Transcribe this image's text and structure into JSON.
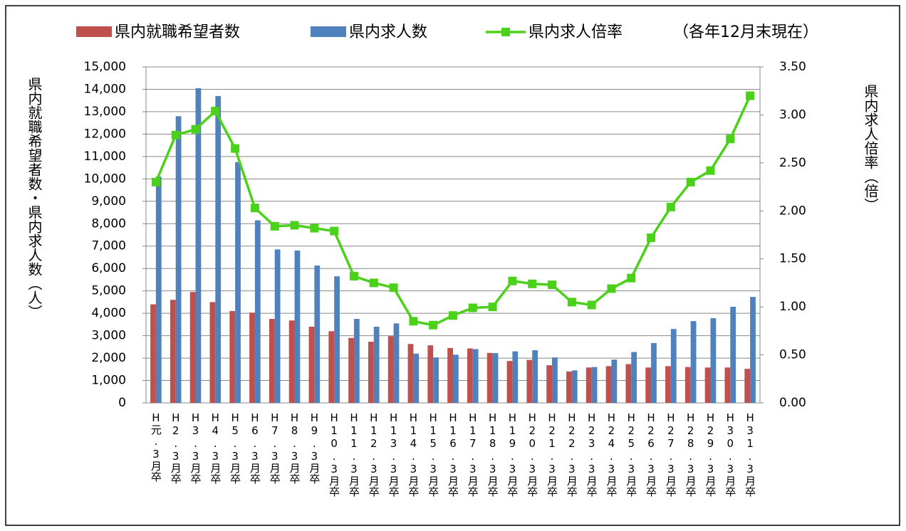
{
  "chart_data": {
    "type": "bar_line",
    "note": "（各年12月末現在）",
    "y_label": "県内就職希望者数・県内求人数（人）",
    "y2_label": "県内求人倍率（倍）",
    "categories": [
      "H元.3月卒",
      "H2.3月卒",
      "H3.3月卒",
      "H4.3月卒",
      "H5.3月卒",
      "H6.3月卒",
      "H7.3月卒",
      "H8.3月卒",
      "H9.3月卒",
      "H10.3月卒",
      "H11.3月卒",
      "H12.3月卒",
      "H13.3月卒",
      "H14.3月卒",
      "H15.3月卒",
      "H16.3月卒",
      "H17.3月卒",
      "H18.3月卒",
      "H19.3月卒",
      "H20.3月卒",
      "H21.3月卒",
      "H22.3月卒",
      "H23.3月卒",
      "H24.3月卒",
      "H25.3月卒",
      "H26.3月卒",
      "H27.3月卒",
      "H28.3月卒",
      "H29.3月卒",
      "H30.3月卒",
      "H31.3月卒"
    ],
    "series": [
      {
        "name": "県内就職希望者数",
        "type": "bar",
        "color": "#c0504d",
        "values": [
          4400,
          4600,
          4950,
          4500,
          4100,
          4030,
          3750,
          3680,
          3400,
          3200,
          2900,
          2730,
          2980,
          2630,
          2570,
          2450,
          2430,
          2230,
          1870,
          1920,
          1680,
          1400,
          1580,
          1640,
          1730,
          1580,
          1640,
          1600,
          1580,
          1580,
          1520
        ]
      },
      {
        "name": "県内求人数",
        "type": "bar",
        "color": "#4f81bd",
        "values": [
          10100,
          12800,
          14050,
          13700,
          10750,
          8150,
          6850,
          6800,
          6130,
          5650,
          3750,
          3400,
          3550,
          2200,
          2030,
          2150,
          2400,
          2220,
          2300,
          2350,
          2030,
          1450,
          1600,
          1930,
          2270,
          2670,
          3300,
          3650,
          3780,
          4290,
          4730
        ]
      },
      {
        "name": "県内求人倍率",
        "type": "line",
        "axis": "y2",
        "color": "#4cd11a",
        "values": [
          2.3,
          2.79,
          2.85,
          3.04,
          2.65,
          2.03,
          1.84,
          1.85,
          1.82,
          1.79,
          1.32,
          1.25,
          1.2,
          0.85,
          0.81,
          0.91,
          0.99,
          1.0,
          1.27,
          1.24,
          1.23,
          1.05,
          1.02,
          1.19,
          1.3,
          1.72,
          2.04,
          2.3,
          2.42,
          2.75,
          3.2
        ]
      }
    ],
    "ylim": [
      0,
      15000
    ],
    "yticks": [
      0,
      {
        "value": 1000,
        "label": "1,000"
      },
      {
        "value": 2000,
        "label": "2,000"
      },
      {
        "value": 3000,
        "label": "3,000"
      },
      {
        "value": 4000,
        "label": "4,000"
      },
      {
        "value": 5000,
        "label": "5,000"
      },
      {
        "value": 6000,
        "label": "6,000"
      },
      {
        "value": 7000,
        "label": "7,000"
      },
      {
        "value": 8000,
        "label": "8,000"
      },
      {
        "value": 9000,
        "label": "9,000"
      },
      {
        "value": 10000,
        "label": "10,000"
      },
      {
        "value": 11000,
        "label": "11,000"
      },
      {
        "value": 12000,
        "label": "12,000"
      },
      {
        "value": 13000,
        "label": "13,000"
      },
      {
        "value": 14000,
        "label": "14,000"
      },
      {
        "value": 15000,
        "label": "15,000"
      }
    ],
    "y2lim": [
      0,
      3.5
    ],
    "y2ticks": [
      {
        "value": 0,
        "label": "0.00"
      },
      {
        "value": 0.5,
        "label": "0.50"
      },
      {
        "value": 1,
        "label": "1.00"
      },
      {
        "value": 1.5,
        "label": "1.50"
      },
      {
        "value": 2,
        "label": "2.00"
      },
      {
        "value": 2.5,
        "label": "2.50"
      },
      {
        "value": 3,
        "label": "3.00"
      },
      {
        "value": 3.5,
        "label": "3.50"
      }
    ],
    "grid": true
  }
}
